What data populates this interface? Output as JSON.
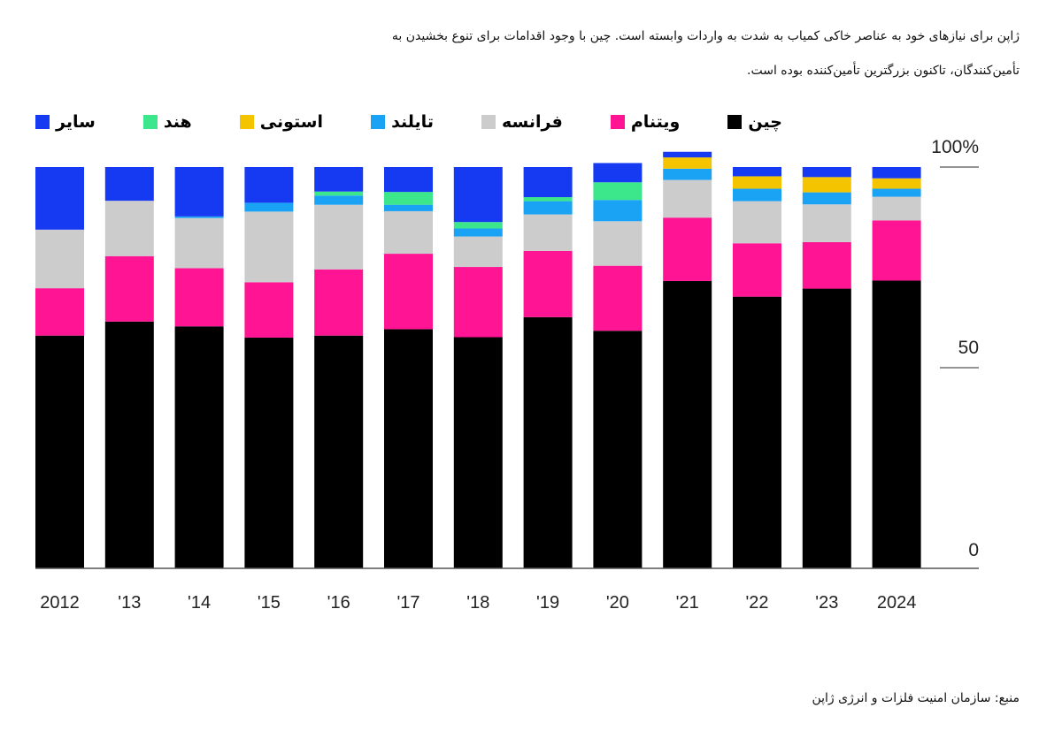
{
  "subtitle": "ژاپن برای نیازهای خود به عناصر خاکی کمیاب به شدت به واردات وابسته است. چین با وجود اقدامات برای تنوع بخشیدن به تأمین‌کنندگان، تاکنون بزرگترین تأمین‌کننده بوده است.",
  "source": "منبع: سازمان امنیت فلزات و انرژی ژاپن",
  "chart_data": {
    "type": "bar",
    "stacked": true,
    "title": "",
    "xlabel": "",
    "ylabel": "",
    "ylim": [
      0,
      100
    ],
    "yticks": [
      {
        "value": 0,
        "label": "0"
      },
      {
        "value": 50,
        "label": "50"
      },
      {
        "value": 100,
        "label": "100%"
      }
    ],
    "categories": [
      "2012",
      "'13",
      "'14",
      "'15",
      "'16",
      "'17",
      "'18",
      "'19",
      "'20",
      "'21",
      "'22",
      "'23",
      "2024"
    ],
    "series": [
      {
        "key": "china",
        "name": "چین",
        "color": "#000000",
        "values": [
          58,
          61.5,
          60.3,
          57.5,
          58,
          59.6,
          57.6,
          62.6,
          59.2,
          71.6,
          67.7,
          69.7,
          71.7
        ]
      },
      {
        "key": "vietnam",
        "name": "ویتنام",
        "color": "#ff1493",
        "values": [
          11.8,
          16.3,
          14.5,
          13.8,
          16.5,
          18.8,
          17.5,
          16.5,
          16.2,
          15.8,
          13.3,
          11.6,
          15
        ]
      },
      {
        "key": "france",
        "name": "فرانسه",
        "color": "#cccccc",
        "values": [
          14.6,
          13.8,
          12.5,
          17.6,
          16.1,
          10.6,
          7.6,
          9.1,
          11.1,
          9.4,
          10.5,
          9.4,
          5.9
        ]
      },
      {
        "key": "thailand",
        "name": "تایلند",
        "color": "#1aa3f5",
        "values": [
          0,
          0,
          0.4,
          2.2,
          2.3,
          1.6,
          2,
          3.3,
          5.3,
          2.8,
          3.1,
          3,
          2
        ]
      },
      {
        "key": "estonia",
        "name": "استونی",
        "color": "#f5c400",
        "values": [
          0,
          0,
          0,
          0,
          0,
          0,
          0,
          0,
          0,
          2.8,
          3.1,
          3.8,
          2.6
        ]
      },
      {
        "key": "india",
        "name": "هند",
        "color": "#3ce68a",
        "values": [
          0,
          0,
          0,
          0,
          1,
          3.2,
          1.6,
          1,
          4.4,
          0,
          0,
          0,
          0
        ]
      },
      {
        "key": "other",
        "name": "سایر",
        "color": "#1639f2",
        "values": [
          15.6,
          8.4,
          12.3,
          8.9,
          6.1,
          6.2,
          13.7,
          7.5,
          4.8,
          1.4,
          2.3,
          2.5,
          2.8
        ]
      }
    ]
  },
  "legend": [
    {
      "label": "چین",
      "color": "#000000"
    },
    {
      "label": "ویتنام",
      "color": "#ff1493"
    },
    {
      "label": "فرانسه",
      "color": "#cccccc"
    },
    {
      "label": "تایلند",
      "color": "#1aa3f5"
    },
    {
      "label": "استونی",
      "color": "#f5c400"
    },
    {
      "label": "هند",
      "color": "#3ce68a"
    },
    {
      "label": "سایر",
      "color": "#1639f2"
    }
  ]
}
